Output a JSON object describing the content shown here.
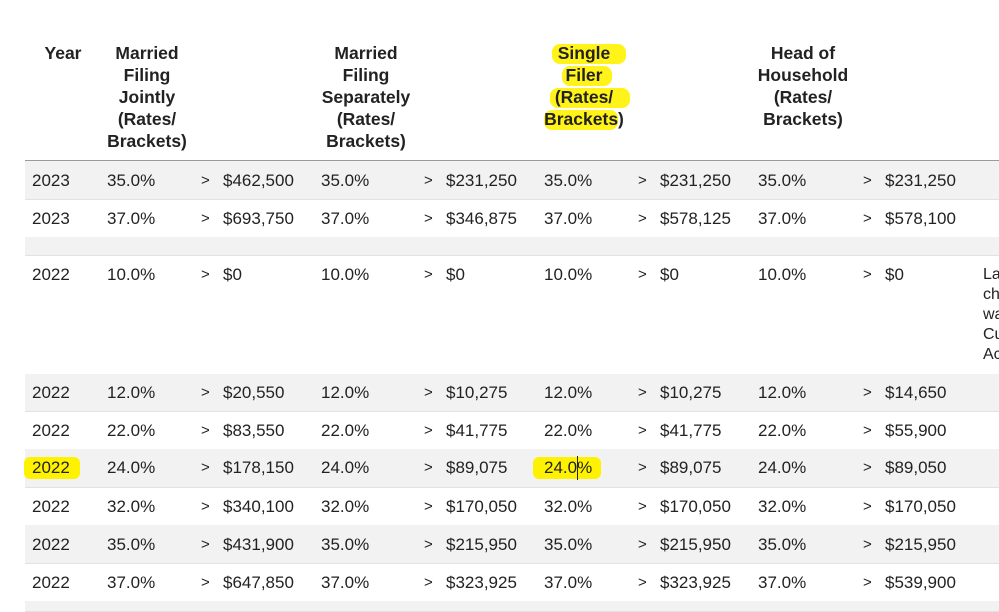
{
  "colors": {
    "highlight": "#fff200",
    "row_shade": "#f2f2f2",
    "header_rule": "#9a9a9a"
  },
  "header": {
    "year": "Year",
    "mfj": [
      "Married",
      "Filing",
      "Jointly",
      "(Rates/",
      "Brackets)"
    ],
    "mfs": [
      "Married",
      "Filing",
      "Separately",
      "(Rates/",
      "Brackets)"
    ],
    "single": [
      "Single",
      "Filer",
      "(Rates/",
      "Brackets)"
    ],
    "hoh": [
      "Head of",
      "Household",
      "(Rates/",
      "Brackets)"
    ]
  },
  "rows": [
    {
      "year": "2023",
      "mfj_rate": "35.0%",
      "mfj_gt": ">",
      "mfj_amt": "$462,500",
      "mfs_rate": "35.0%",
      "mfs_gt": ">",
      "mfs_amt": "$231,250",
      "s_rate": "35.0%",
      "s_gt": ">",
      "s_amt": "$231,250",
      "h_rate": "35.0%",
      "h_gt": ">",
      "h_amt": "$231,250"
    },
    {
      "year": "2023",
      "mfj_rate": "37.0%",
      "mfj_gt": ">",
      "mfj_amt": "$693,750",
      "mfs_rate": "37.0%",
      "mfs_gt": ">",
      "mfs_amt": "$346,875",
      "s_rate": "37.0%",
      "s_gt": ">",
      "s_amt": "$578,125",
      "h_rate": "37.0%",
      "h_gt": ">",
      "h_amt": "$578,100"
    },
    {
      "year": "2022",
      "mfj_rate": "10.0%",
      "mfj_gt": ">",
      "mfj_amt": "$0",
      "mfs_rate": "10.0%",
      "mfs_gt": ">",
      "mfs_amt": "$0",
      "s_rate": "10.0%",
      "s_gt": ">",
      "s_amt": "$0",
      "h_rate": "10.0%",
      "h_gt": ">",
      "h_amt": "$0"
    },
    {
      "year": "2022",
      "mfj_rate": "12.0%",
      "mfj_gt": ">",
      "mfj_amt": "$20,550",
      "mfs_rate": "12.0%",
      "mfs_gt": ">",
      "mfs_amt": "$10,275",
      "s_rate": "12.0%",
      "s_gt": ">",
      "s_amt": "$10,275",
      "h_rate": "12.0%",
      "h_gt": ">",
      "h_amt": "$14,650"
    },
    {
      "year": "2022",
      "mfj_rate": "22.0%",
      "mfj_gt": ">",
      "mfj_amt": "$83,550",
      "mfs_rate": "22.0%",
      "mfs_gt": ">",
      "mfs_amt": "$41,775",
      "s_rate": "22.0%",
      "s_gt": ">",
      "s_amt": "$41,775",
      "h_rate": "22.0%",
      "h_gt": ">",
      "h_amt": "$55,900"
    },
    {
      "year": "2022",
      "mfj_rate": "24.0%",
      "mfj_gt": ">",
      "mfj_amt": "$178,150",
      "mfs_rate": "24.0%",
      "mfs_gt": ">",
      "mfs_amt": "$89,075",
      "s_rate": "24.0%",
      "s_gt": ">",
      "s_amt": "$89,075",
      "h_rate": "24.0%",
      "h_gt": ">",
      "h_amt": "$89,050"
    },
    {
      "year": "2022",
      "mfj_rate": "32.0%",
      "mfj_gt": ">",
      "mfj_amt": "$340,100",
      "mfs_rate": "32.0%",
      "mfs_gt": ">",
      "mfs_amt": "$170,050",
      "s_rate": "32.0%",
      "s_gt": ">",
      "s_amt": "$170,050",
      "h_rate": "32.0%",
      "h_gt": ">",
      "h_amt": "$170,050"
    },
    {
      "year": "2022",
      "mfj_rate": "35.0%",
      "mfj_gt": ">",
      "mfj_amt": "$431,900",
      "mfs_rate": "35.0%",
      "mfs_gt": ">",
      "mfs_amt": "$215,950",
      "s_rate": "35.0%",
      "s_gt": ">",
      "s_amt": "$215,950",
      "h_rate": "35.0%",
      "h_gt": ">",
      "h_amt": "$215,950"
    },
    {
      "year": "2022",
      "mfj_rate": "37.0%",
      "mfj_gt": ">",
      "mfj_amt": "$647,850",
      "mfs_rate": "37.0%",
      "mfs_gt": ">",
      "mfs_amt": "$323,925",
      "s_rate": "37.0%",
      "s_gt": ">",
      "s_amt": "$323,925",
      "h_rate": "37.0%",
      "h_gt": ">",
      "h_amt": "$539,900"
    }
  ],
  "note": [
    "La",
    "ch",
    "wa",
    "Cu",
    "Ac"
  ]
}
